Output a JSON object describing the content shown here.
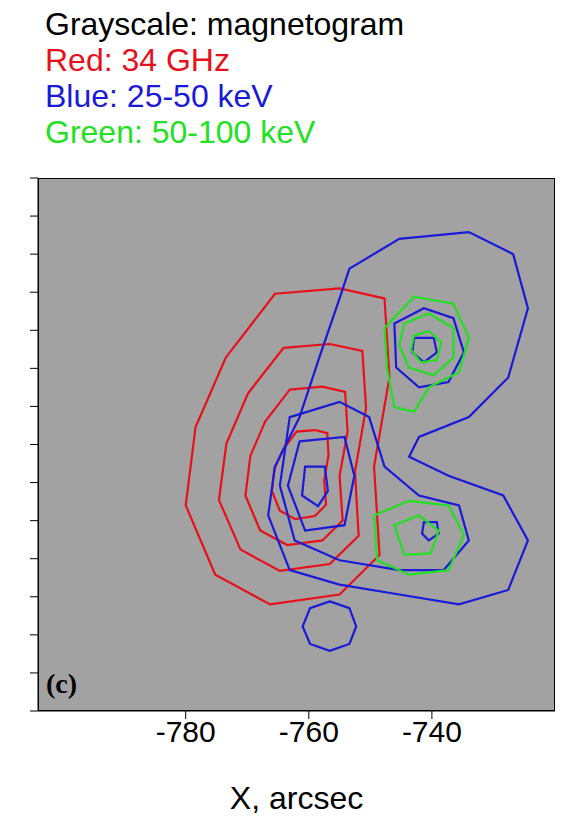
{
  "chart_data": {
    "type": "contour",
    "title": "Grayscale: magnetogram",
    "panel": "(c)",
    "x_label": "X, arcsec",
    "xlim": [
      -804,
      -720
    ],
    "xticks": [
      -780,
      -760,
      -740
    ],
    "ylim": [
      200,
      270
    ],
    "yticks": [
      200,
      205,
      210,
      215,
      220,
      225,
      230,
      235,
      240,
      245,
      250,
      255,
      260,
      265,
      270
    ],
    "tick_labels": "x",
    "legend": "top",
    "series": [
      {
        "name": "Red: 34 GHz",
        "color": "#e8101a",
        "contours": [
          [
            [
              -765.5,
              254.8
            ],
            [
              -755.0,
              255.5
            ],
            [
              -747.7,
              254.2
            ],
            [
              -746.9,
              243.8
            ],
            [
              -749.4,
              232.1
            ],
            [
              -748.5,
              220.5
            ],
            [
              -755.0,
              215.3
            ],
            [
              -766.3,
              214.0
            ],
            [
              -775.2,
              217.9
            ],
            [
              -780.0,
              227.0
            ],
            [
              -778.4,
              237.3
            ],
            [
              -773.5,
              246.4
            ]
          ],
          [
            [
              -764.1,
              247.7
            ],
            [
              -756.6,
              248.2
            ],
            [
              -751.3,
              247.3
            ],
            [
              -750.7,
              239.8
            ],
            [
              -752.5,
              231.4
            ],
            [
              -751.9,
              223.0
            ],
            [
              -756.6,
              219.3
            ],
            [
              -764.7,
              218.4
            ],
            [
              -771.1,
              221.2
            ],
            [
              -774.6,
              227.7
            ],
            [
              -773.4,
              235.1
            ],
            [
              -769.9,
              241.7
            ]
          ],
          [
            [
              -763.1,
              242.2
            ],
            [
              -757.8,
              242.6
            ],
            [
              -754.1,
              241.9
            ],
            [
              -753.7,
              236.7
            ],
            [
              -755.0,
              230.9
            ],
            [
              -754.5,
              225.0
            ],
            [
              -757.8,
              222.4
            ],
            [
              -763.5,
              221.8
            ],
            [
              -767.9,
              223.7
            ],
            [
              -770.3,
              228.3
            ],
            [
              -769.5,
              233.5
            ],
            [
              -767.1,
              238.0
            ]
          ],
          [
            [
              -762.0,
              236.7
            ],
            [
              -759.0,
              236.9
            ],
            [
              -757.0,
              236.5
            ],
            [
              -756.8,
              233.6
            ],
            [
              -757.5,
              230.3
            ],
            [
              -757.2,
              227.1
            ],
            [
              -759.0,
              225.6
            ],
            [
              -762.2,
              225.2
            ],
            [
              -764.7,
              226.3
            ],
            [
              -766.0,
              228.9
            ],
            [
              -765.6,
              231.8
            ],
            [
              -764.2,
              234.3
            ]
          ]
        ]
      },
      {
        "name": "Blue: 25-50 keV",
        "color": "#1a1ad8",
        "contours": [
          [
            [
              -753.4,
              258.1
            ],
            [
              -745.3,
              262.0
            ],
            [
              -734.0,
              262.9
            ],
            [
              -726.8,
              260.0
            ],
            [
              -724.4,
              252.9
            ],
            [
              -727.6,
              243.8
            ],
            [
              -734.0,
              238.6
            ],
            [
              -742.1,
              236.0
            ],
            [
              -743.7,
              233.4
            ],
            [
              -737.3,
              230.9
            ],
            [
              -728.4,
              228.3
            ],
            [
              -724.4,
              222.4
            ],
            [
              -727.6,
              215.9
            ],
            [
              -735.6,
              214.0
            ],
            [
              -745.3,
              215.3
            ],
            [
              -755.0,
              216.6
            ],
            [
              -763.1,
              218.5
            ],
            [
              -766.6,
              225.7
            ],
            [
              -765.5,
              232.1
            ],
            [
              -761.5,
              238.6
            ],
            [
              -758.3,
              246.4
            ],
            [
              -755.0,
              254.2
            ]
          ],
          [
            [
              -763.1,
              238.6
            ],
            [
              -755.0,
              240.6
            ],
            [
              -750.2,
              238.6
            ],
            [
              -747.7,
              232.1
            ],
            [
              -742.1,
              228.3
            ],
            [
              -735.6,
              227.0
            ],
            [
              -734.0,
              222.4
            ],
            [
              -738.1,
              218.5
            ],
            [
              -745.3,
              218.5
            ],
            [
              -755.0,
              219.8
            ],
            [
              -762.3,
              222.4
            ],
            [
              -764.7,
              229.6
            ]
          ],
          [
            [
              -761.5,
              235.4
            ],
            [
              -754.2,
              236.0
            ],
            [
              -752.6,
              230.9
            ],
            [
              -754.2,
              224.4
            ],
            [
              -760.6,
              223.7
            ],
            [
              -763.4,
              229.6
            ]
          ],
          [
            [
              -760.6,
              232.1
            ],
            [
              -757.4,
              232.1
            ],
            [
              -756.9,
              228.9
            ],
            [
              -758.5,
              226.9
            ],
            [
              -761.1,
              228.3
            ]
          ],
          [
            [
              -746.1,
              250.9
            ],
            [
              -741.3,
              252.9
            ],
            [
              -736.5,
              251.6
            ],
            [
              -734.8,
              247.1
            ],
            [
              -737.3,
              243.2
            ],
            [
              -742.1,
              242.5
            ],
            [
              -745.8,
              245.1
            ]
          ],
          [
            [
              -742.9,
              249.0
            ],
            [
              -739.7,
              249.0
            ],
            [
              -739.2,
              247.1
            ],
            [
              -741.3,
              245.8
            ],
            [
              -743.2,
              247.1
            ]
          ],
          [
            [
              -741.3,
              224.8
            ],
            [
              -739.2,
              224.8
            ],
            [
              -738.9,
              223.3
            ],
            [
              -740.5,
              222.4
            ],
            [
              -741.6,
              223.3
            ]
          ],
          [
            [
              -756.6,
              214.4
            ],
            [
              -753.4,
              213.5
            ],
            [
              -752.3,
              211.1
            ],
            [
              -753.4,
              208.8
            ],
            [
              -756.6,
              207.9
            ],
            [
              -759.8,
              208.8
            ],
            [
              -761.0,
              211.1
            ],
            [
              -759.8,
              213.5
            ]
          ]
        ]
      },
      {
        "name": "Green: 50-100 keV",
        "color": "#22e022",
        "contours": [
          [
            [
              -747.7,
              250.3
            ],
            [
              -742.9,
              254.4
            ],
            [
              -736.5,
              253.5
            ],
            [
              -734.0,
              249.0
            ],
            [
              -735.6,
              244.5
            ],
            [
              -740.5,
              242.5
            ],
            [
              -742.9,
              239.3
            ],
            [
              -746.1,
              239.9
            ],
            [
              -747.3,
              245.1
            ]
          ],
          [
            [
              -744.5,
              250.9
            ],
            [
              -740.5,
              252.2
            ],
            [
              -736.5,
              250.3
            ],
            [
              -736.5,
              246.4
            ],
            [
              -739.7,
              244.1
            ],
            [
              -743.7,
              245.1
            ],
            [
              -745.3,
              248.0
            ]
          ],
          [
            [
              -742.9,
              249.3
            ],
            [
              -740.5,
              249.9
            ],
            [
              -738.5,
              248.4
            ],
            [
              -739.2,
              246.1
            ],
            [
              -741.8,
              245.8
            ],
            [
              -743.4,
              247.4
            ]
          ],
          [
            [
              -749.4,
              225.7
            ],
            [
              -743.7,
              227.6
            ],
            [
              -737.3,
              227.0
            ],
            [
              -734.8,
              223.1
            ],
            [
              -737.3,
              218.5
            ],
            [
              -743.7,
              217.9
            ],
            [
              -748.9,
              219.8
            ]
          ],
          [
            [
              -746.1,
              224.4
            ],
            [
              -742.1,
              225.7
            ],
            [
              -738.9,
              223.7
            ],
            [
              -740.2,
              220.7
            ],
            [
              -744.5,
              220.5
            ]
          ]
        ]
      }
    ]
  }
}
